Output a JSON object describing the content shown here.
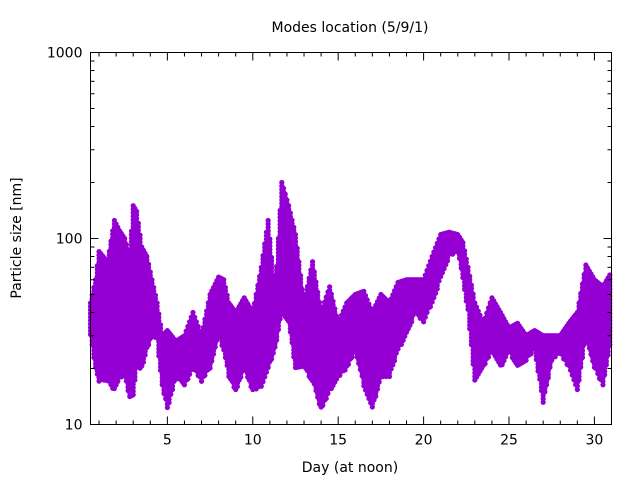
{
  "chart_data": {
    "type": "scatter",
    "title": "Modes location (5/9/1)",
    "xlabel": "Day (at noon)",
    "ylabel": "Particle size [nm]",
    "xlim": [
      0.5,
      31
    ],
    "ylim": [
      10,
      1000
    ],
    "yscale": "log",
    "x_ticks": [
      5,
      10,
      15,
      20,
      25,
      30
    ],
    "x_tick_labels": [
      "5",
      "10",
      "15",
      "20",
      "25",
      "30"
    ],
    "y_ticks": [
      10,
      100,
      1000
    ],
    "y_tick_labels": [
      "10",
      "100",
      "1000"
    ],
    "grid": false,
    "marker_color": "#9400d3",
    "series": [
      {
        "name": "modes",
        "description_of_values": "envelope [day, min size nm, max size nm]",
        "ranges": [
          [
            0.5,
            30,
            45
          ],
          [
            0.8,
            20,
            60
          ],
          [
            1.0,
            17,
            85
          ],
          [
            1.5,
            17,
            75
          ],
          [
            1.9,
            15,
            125
          ],
          [
            2.2,
            18,
            110
          ],
          [
            2.5,
            18,
            100
          ],
          [
            2.8,
            14,
            80
          ],
          [
            3.0,
            14,
            150
          ],
          [
            3.2,
            20,
            140
          ],
          [
            3.5,
            20,
            90
          ],
          [
            3.8,
            25,
            80
          ],
          [
            4.1,
            30,
            60
          ],
          [
            4.4,
            28,
            45
          ],
          [
            4.7,
            16,
            30
          ],
          [
            5.0,
            12,
            32
          ],
          [
            5.5,
            18,
            28
          ],
          [
            6.0,
            16,
            30
          ],
          [
            6.5,
            20,
            40
          ],
          [
            7.0,
            17,
            30
          ],
          [
            7.5,
            20,
            50
          ],
          [
            8.0,
            30,
            62
          ],
          [
            8.3,
            25,
            60
          ],
          [
            8.6,
            18,
            45
          ],
          [
            9.0,
            15,
            40
          ],
          [
            9.5,
            20,
            48
          ],
          [
            10.0,
            15,
            40
          ],
          [
            10.5,
            16,
            70
          ],
          [
            10.9,
            20,
            125
          ],
          [
            11.3,
            25,
            50
          ],
          [
            11.7,
            40,
            200
          ],
          [
            12.1,
            35,
            150
          ],
          [
            12.5,
            20,
            105
          ],
          [
            13.0,
            20,
            45
          ],
          [
            13.5,
            17,
            75
          ],
          [
            14.0,
            12,
            40
          ],
          [
            14.5,
            15,
            55
          ],
          [
            15.0,
            18,
            35
          ],
          [
            15.5,
            20,
            45
          ],
          [
            16.0,
            25,
            50
          ],
          [
            16.5,
            16,
            52
          ],
          [
            17.0,
            12,
            40
          ],
          [
            17.5,
            18,
            50
          ],
          [
            18.0,
            18,
            45
          ],
          [
            18.5,
            25,
            58
          ],
          [
            19.0,
            30,
            60
          ],
          [
            19.5,
            40,
            60
          ],
          [
            20.0,
            35,
            60
          ],
          [
            20.5,
            45,
            80
          ],
          [
            21.0,
            60,
            105
          ],
          [
            21.5,
            80,
            108
          ],
          [
            22.0,
            85,
            105
          ],
          [
            22.3,
            60,
            95
          ],
          [
            22.6,
            40,
            70
          ],
          [
            23.0,
            17,
            45
          ],
          [
            23.5,
            20,
            35
          ],
          [
            24.0,
            25,
            48
          ],
          [
            24.5,
            20,
            40
          ],
          [
            25.0,
            25,
            33
          ],
          [
            25.5,
            20,
            35
          ],
          [
            26.0,
            22,
            30
          ],
          [
            26.5,
            25,
            32
          ],
          [
            27.0,
            13,
            30
          ],
          [
            27.5,
            22,
            30
          ],
          [
            28.0,
            24,
            30
          ],
          [
            28.5,
            20,
            35
          ],
          [
            29.0,
            15,
            40
          ],
          [
            29.5,
            30,
            72
          ],
          [
            30.0,
            20,
            60
          ],
          [
            30.5,
            16,
            55
          ],
          [
            31.0,
            30,
            66
          ]
        ]
      }
    ]
  }
}
